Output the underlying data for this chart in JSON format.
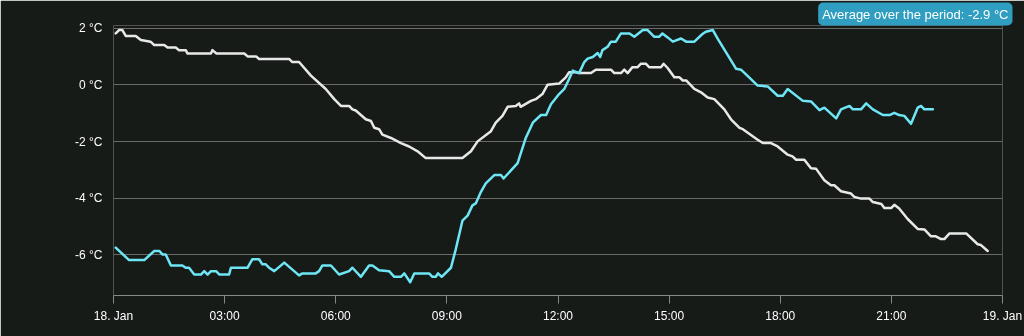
{
  "chart_data": {
    "type": "line",
    "annotations": [
      "Average over the period: -2.9 °C"
    ],
    "xlim": [
      0,
      24
    ],
    "ylim": [
      -7.43,
      2.1
    ],
    "xticks": [
      {
        "value": 0,
        "label": "18. Jan"
      },
      {
        "value": 3,
        "label": "03:00"
      },
      {
        "value": 6,
        "label": "06:00"
      },
      {
        "value": 9,
        "label": "09:00"
      },
      {
        "value": 12,
        "label": "12:00"
      },
      {
        "value": 15,
        "label": "15:00"
      },
      {
        "value": 18,
        "label": "18:00"
      },
      {
        "value": 21,
        "label": "21:00"
      },
      {
        "value": 24,
        "label": "19. Jan"
      }
    ],
    "yticks": [
      {
        "value": -6,
        "label": "-6 °C"
      },
      {
        "value": -4,
        "label": "-4 °C"
      },
      {
        "value": -2,
        "label": "-2 °C"
      },
      {
        "value": 0,
        "label": "0 °C"
      },
      {
        "value": 2,
        "label": "2 °C"
      }
    ],
    "grid": "y",
    "series": [
      {
        "color": "#e8e8e8",
        "x": [
          0.06,
          0.15,
          0.24,
          0.33,
          0.6,
          0.74,
          1.0,
          1.1,
          1.37,
          1.46,
          1.68,
          1.77,
          1.95,
          2.0,
          2.63,
          2.67,
          2.78,
          3.53,
          3.62,
          3.85,
          3.93,
          4.74,
          4.83,
          5.01,
          5.33,
          5.73,
          5.96,
          6.14,
          6.36,
          6.45,
          6.54,
          6.81,
          6.95,
          7.04,
          7.17,
          7.26,
          7.49,
          7.76,
          7.98,
          8.21,
          8.43,
          9.42,
          9.65,
          9.83,
          10.19,
          10.32,
          10.5,
          10.64,
          10.86,
          10.95,
          10.99,
          11.27,
          11.4,
          11.58,
          11.72,
          12.03,
          12.21,
          12.3,
          12.48,
          12.57,
          12.89,
          13.02,
          13.43,
          13.52,
          13.7,
          13.79,
          13.88,
          14.01,
          14.15,
          14.24,
          14.37,
          14.46,
          14.78,
          14.85,
          14.96,
          15.14,
          15.28,
          15.37,
          15.46,
          15.68,
          15.86,
          16.04,
          16.22,
          16.49,
          16.67,
          16.9,
          16.99,
          17.39,
          17.53,
          17.75,
          17.93,
          18.2,
          18.33,
          18.43,
          18.65,
          18.83,
          18.97,
          19.19,
          19.37,
          19.46,
          19.64,
          19.91,
          20.0,
          20.18,
          20.41,
          20.5,
          20.73,
          20.81,
          21.0,
          21.08,
          21.21,
          21.44,
          21.71,
          21.89,
          22.07,
          22.2,
          22.34,
          22.43,
          22.57,
          23.02,
          23.33,
          23.42,
          23.6
        ],
        "values": [
          1.82,
          1.94,
          1.94,
          1.73,
          1.73,
          1.59,
          1.53,
          1.41,
          1.41,
          1.32,
          1.32,
          1.23,
          1.23,
          1.11,
          1.11,
          1.23,
          1.11,
          1.11,
          1.01,
          1.01,
          0.92,
          0.92,
          0.81,
          0.81,
          0.33,
          -0.14,
          -0.5,
          -0.74,
          -0.74,
          -0.86,
          -0.9,
          -1.21,
          -1.27,
          -1.51,
          -1.56,
          -1.75,
          -1.87,
          -2.05,
          -2.17,
          -2.34,
          -2.58,
          -2.58,
          -2.34,
          -1.99,
          -1.63,
          -1.33,
          -1.09,
          -0.77,
          -0.74,
          -0.65,
          -0.77,
          -0.56,
          -0.5,
          -0.32,
          0.01,
          0.05,
          0.27,
          0.45,
          0.45,
          0.42,
          0.42,
          0.54,
          0.54,
          0.42,
          0.42,
          0.54,
          0.42,
          0.63,
          0.63,
          0.75,
          0.75,
          0.63,
          0.63,
          0.75,
          0.6,
          0.27,
          0.27,
          0.16,
          0.16,
          -0.14,
          -0.26,
          -0.44,
          -0.5,
          -0.86,
          -1.21,
          -1.51,
          -1.56,
          -1.93,
          -2.05,
          -2.05,
          -2.17,
          -2.46,
          -2.52,
          -2.64,
          -2.64,
          -2.94,
          -2.96,
          -3.36,
          -3.54,
          -3.54,
          -3.75,
          -3.83,
          -3.95,
          -4.01,
          -4.01,
          -4.13,
          -4.2,
          -4.34,
          -4.34,
          -4.23,
          -4.36,
          -4.73,
          -5.08,
          -5.1,
          -5.34,
          -5.34,
          -5.44,
          -5.44,
          -5.24,
          -5.24,
          -5.62,
          -5.65,
          -5.86
        ]
      },
      {
        "color": "#6ee6f5",
        "x": [
          0.06,
          0.42,
          0.83,
          1.1,
          1.24,
          1.32,
          1.41,
          1.55,
          1.86,
          1.95,
          2.04,
          2.18,
          2.36,
          2.45,
          2.54,
          2.63,
          2.77,
          2.86,
          3.12,
          3.17,
          3.62,
          3.75,
          3.93,
          4.02,
          4.11,
          4.2,
          4.34,
          4.61,
          5.01,
          5.1,
          5.46,
          5.55,
          5.64,
          5.87,
          6.09,
          6.36,
          6.45,
          6.68,
          6.9,
          6.99,
          7.17,
          7.44,
          7.58,
          7.76,
          7.85,
          8.01,
          8.12,
          8.52,
          8.61,
          8.7,
          8.76,
          8.86,
          9.11,
          9.24,
          9.42,
          9.56,
          9.69,
          9.78,
          9.92,
          10.05,
          10.28,
          10.46,
          10.53,
          10.91,
          11.13,
          11.32,
          11.54,
          11.68,
          11.81,
          12.03,
          12.17,
          12.3,
          12.4,
          12.57,
          12.71,
          12.8,
          12.94,
          13.07,
          13.14,
          13.2,
          13.34,
          13.43,
          13.56,
          13.7,
          13.93,
          14.06,
          14.29,
          14.42,
          14.6,
          14.73,
          14.82,
          14.96,
          15.1,
          15.32,
          15.46,
          15.68,
          15.9,
          15.99,
          16.18,
          16.31,
          16.81,
          16.94,
          17.16,
          17.39,
          17.66,
          17.93,
          18.07,
          18.2,
          18.61,
          18.83,
          19.06,
          19.19,
          19.51,
          19.64,
          19.87,
          19.96,
          20.18,
          20.32,
          20.5,
          20.77,
          20.95,
          21.08,
          21.21,
          21.35,
          21.53,
          21.71,
          21.8,
          21.89,
          22.12
        ],
        "values": [
          -5.74,
          -6.18,
          -6.18,
          -5.86,
          -5.86,
          -5.98,
          -5.98,
          -6.37,
          -6.37,
          -6.45,
          -6.45,
          -6.69,
          -6.69,
          -6.57,
          -6.69,
          -6.57,
          -6.57,
          -6.69,
          -6.69,
          -6.45,
          -6.45,
          -6.15,
          -6.15,
          -6.33,
          -6.33,
          -6.45,
          -6.57,
          -6.27,
          -6.72,
          -6.65,
          -6.65,
          -6.57,
          -6.37,
          -6.37,
          -6.69,
          -6.57,
          -6.45,
          -6.77,
          -6.37,
          -6.37,
          -6.54,
          -6.57,
          -6.77,
          -6.77,
          -6.65,
          -6.96,
          -6.65,
          -6.65,
          -6.77,
          -6.77,
          -6.65,
          -6.77,
          -6.45,
          -5.8,
          -4.79,
          -4.61,
          -4.25,
          -4.18,
          -3.77,
          -3.47,
          -3.18,
          -3.18,
          -3.3,
          -2.76,
          -1.87,
          -1.33,
          -1.06,
          -1.06,
          -0.68,
          -0.32,
          -0.14,
          0.21,
          0.51,
          0.42,
          0.81,
          0.93,
          0.99,
          1.13,
          0.99,
          1.23,
          1.35,
          1.53,
          1.53,
          1.82,
          1.82,
          1.7,
          1.94,
          1.94,
          1.7,
          1.7,
          1.82,
          1.68,
          1.53,
          1.64,
          1.53,
          1.53,
          1.8,
          1.88,
          1.94,
          1.64,
          0.57,
          0.54,
          0.27,
          -0.02,
          -0.05,
          -0.38,
          -0.38,
          -0.14,
          -0.56,
          -0.58,
          -0.89,
          -0.8,
          -1.18,
          -0.86,
          -0.74,
          -0.86,
          -0.86,
          -0.65,
          -0.86,
          -1.06,
          -1.06,
          -0.98,
          -1.06,
          -1.09,
          -1.37,
          -0.8,
          -0.74,
          -0.86,
          -0.86
        ]
      }
    ]
  }
}
